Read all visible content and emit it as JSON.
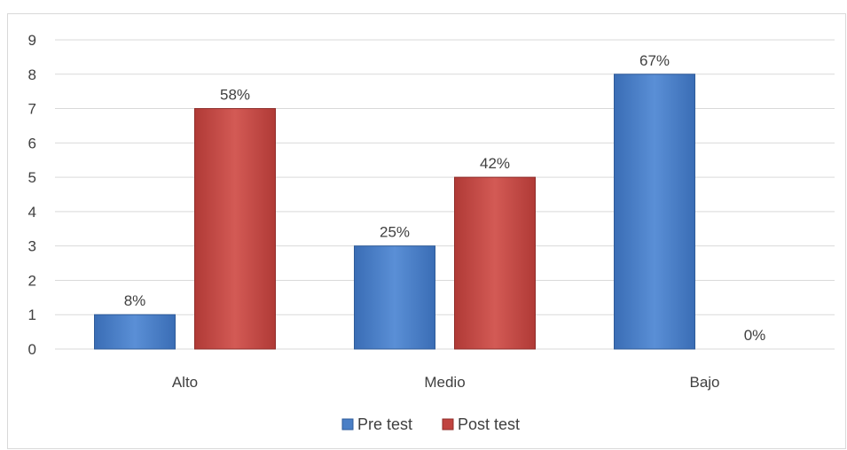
{
  "chart_data": {
    "type": "bar",
    "categories": [
      "Alto",
      "Medio",
      "Bajo"
    ],
    "series": [
      {
        "name": "Pre test",
        "values": [
          1,
          3,
          8
        ],
        "labels": [
          "8%",
          "25%",
          "67%"
        ],
        "color": "#4a7fc6"
      },
      {
        "name": "Post test",
        "values": [
          7,
          5,
          0
        ],
        "labels": [
          "58%",
          "42%",
          "0%"
        ],
        "color": "#c0433f"
      }
    ],
    "ylim": [
      0,
      9
    ],
    "yticks": [
      "0",
      "1",
      "2",
      "3",
      "4",
      "5",
      "6",
      "7",
      "8",
      "9"
    ],
    "grid": true,
    "legend_position": "bottom"
  }
}
